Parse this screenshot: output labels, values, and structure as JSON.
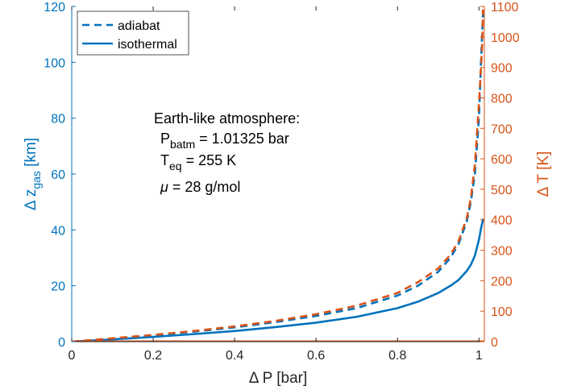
{
  "chart_data": {
    "type": "line",
    "xlabel": "Δ P [bar]",
    "ylabel_left": {
      "base": "Δ z",
      "sub": "gas",
      "unit": " [km]"
    },
    "ylabel_right": "Δ T [K]",
    "xlim": [
      0,
      1.01325
    ],
    "ylim_left": [
      0,
      120
    ],
    "ylim_right": [
      0,
      1100
    ],
    "x_ticks": [
      0,
      0.2,
      0.4,
      0.6,
      0.8,
      1
    ],
    "x_tick_labels": [
      "0",
      "0.2",
      "0.4",
      "0.6",
      "0.8",
      "1"
    ],
    "y_left_ticks": [
      0,
      20,
      40,
      60,
      80,
      100,
      120
    ],
    "y_left_tick_labels": [
      "0",
      "20",
      "40",
      "60",
      "80",
      "100",
      "120"
    ],
    "y_right_ticks": [
      0,
      100,
      200,
      300,
      400,
      500,
      600,
      700,
      800,
      900,
      1000,
      1100
    ],
    "y_right_tick_labels": [
      "0",
      "100",
      "200",
      "300",
      "400",
      "500",
      "600",
      "700",
      "800",
      "900",
      "1000",
      "1100"
    ],
    "grid": false,
    "legend_placement": "top-left",
    "legend": [
      {
        "label": "adiabat",
        "style": "dashed"
      },
      {
        "label": "isothermal",
        "style": "solid"
      }
    ],
    "annotation": {
      "title": "Earth-like atmosphere:",
      "lines": [
        {
          "base": "P",
          "sub": "batm",
          "rest": " = 1.01325 bar"
        },
        {
          "base": "T",
          "sub": "eq",
          "rest": " = 255 K"
        },
        {
          "base": "μ",
          "sub": "",
          "rest": " = 28 g/mol"
        }
      ]
    },
    "series": [
      {
        "name": "adiabat",
        "axis": "left",
        "style": "dashed",
        "color": "#0072BD",
        "x": [
          0,
          0.1,
          0.2,
          0.3,
          0.4,
          0.5,
          0.6,
          0.7,
          0.8,
          0.85,
          0.9,
          0.93,
          0.95,
          0.97,
          0.98,
          0.99,
          1.0,
          1.005,
          1.01
        ],
        "y": [
          0,
          1.1,
          2.3,
          3.6,
          5.1,
          7.0,
          9.2,
          12.0,
          16.5,
          20.0,
          25.0,
          30.0,
          35.0,
          43.0,
          50.0,
          60.0,
          80.0,
          100.0,
          118.0
        ]
      },
      {
        "name": "isothermal",
        "axis": "left",
        "style": "solid",
        "color": "#0072BD",
        "x": [
          0,
          0.1,
          0.2,
          0.3,
          0.4,
          0.5,
          0.6,
          0.7,
          0.8,
          0.85,
          0.9,
          0.93,
          0.95,
          0.97,
          0.98,
          0.99,
          1.0,
          1.005,
          1.0105
        ],
        "y": [
          0,
          0.8,
          1.7,
          2.7,
          3.8,
          5.2,
          6.8,
          8.9,
          12.0,
          14.3,
          17.4,
          20.0,
          22.1,
          25.3,
          27.5,
          30.8,
          36.5,
          40.5,
          44.0
        ]
      },
      {
        "name": "",
        "axis": "right",
        "style": "dashed",
        "color": "#D95319",
        "x": [
          0,
          0.1,
          0.2,
          0.3,
          0.4,
          0.5,
          0.6,
          0.7,
          0.8,
          0.85,
          0.9,
          0.93,
          0.95,
          0.97,
          0.98,
          0.99,
          1.0,
          1.005,
          1.008,
          1.01
        ],
        "y": [
          0,
          11,
          22,
          35,
          50,
          68,
          90,
          118,
          160,
          195,
          240,
          285,
          330,
          405,
          470,
          580,
          780,
          900,
          980,
          1090
        ]
      },
      {
        "name": "",
        "axis": "right",
        "style": "solid",
        "color": "#D95319",
        "x": [
          0,
          1.01325
        ],
        "y": [
          0,
          0
        ]
      }
    ]
  }
}
